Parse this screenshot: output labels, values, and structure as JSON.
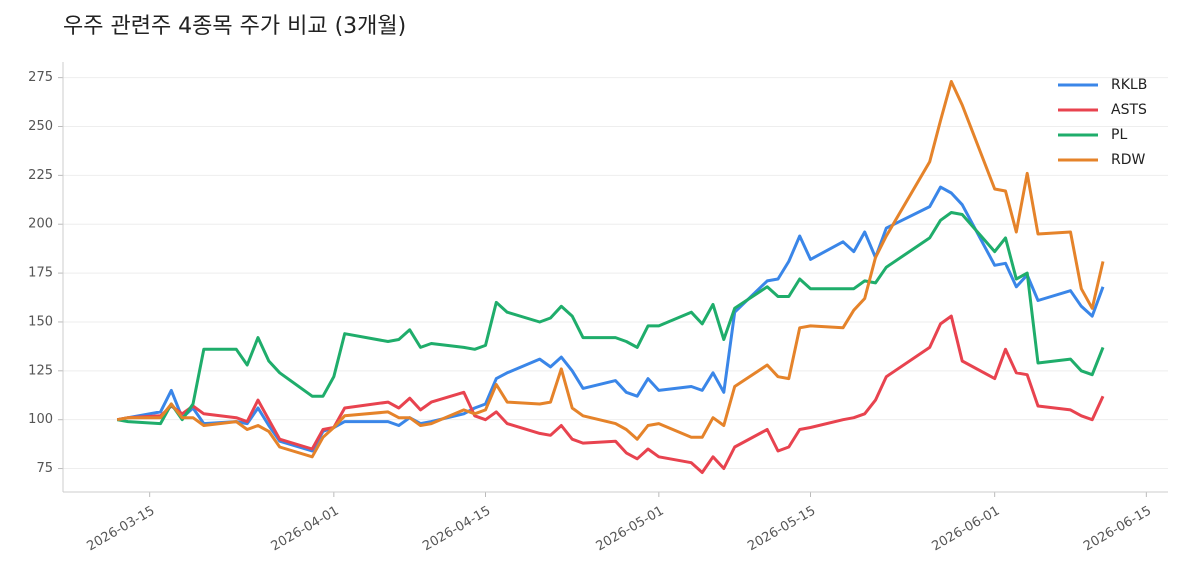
{
  "chart_data": {
    "type": "line",
    "title": "우주 관련주 4종목 주가 비교 (3개월)",
    "x": [
      "2026-03-12",
      "2026-03-13",
      "2026-03-16",
      "2026-03-17",
      "2026-03-18",
      "2026-03-19",
      "2026-03-20",
      "2026-03-23",
      "2026-03-24",
      "2026-03-25",
      "2026-03-26",
      "2026-03-27",
      "2026-03-30",
      "2026-03-31",
      "2026-04-01",
      "2026-04-02",
      "2026-04-06",
      "2026-04-07",
      "2026-04-08",
      "2026-04-09",
      "2026-04-10",
      "2026-04-13",
      "2026-04-14",
      "2026-04-15",
      "2026-04-16",
      "2026-04-17",
      "2026-04-20",
      "2026-04-21",
      "2026-04-22",
      "2026-04-23",
      "2026-04-24",
      "2026-04-27",
      "2026-04-28",
      "2026-04-29",
      "2026-04-30",
      "2026-05-01",
      "2026-05-04",
      "2026-05-05",
      "2026-05-06",
      "2026-05-07",
      "2026-05-08",
      "2026-05-11",
      "2026-05-12",
      "2026-05-13",
      "2026-05-14",
      "2026-05-15",
      "2026-05-18",
      "2026-05-19",
      "2026-05-20",
      "2026-05-21",
      "2026-05-22",
      "2026-05-26",
      "2026-05-27",
      "2026-05-28",
      "2026-05-29",
      "2026-06-01",
      "2026-06-02",
      "2026-06-03",
      "2026-06-04",
      "2026-06-05",
      "2026-06-08",
      "2026-06-09",
      "2026-06-10",
      "2026-06-11"
    ],
    "series": [
      {
        "name": "RKLB",
        "color": "#3a86e8",
        "values": [
          100,
          101,
          104,
          115,
          101,
          106,
          98,
          99,
          98,
          106,
          97,
          89,
          84,
          94,
          96,
          99,
          99,
          97,
          101,
          98,
          99,
          103,
          106,
          108,
          121,
          124,
          131,
          127,
          132,
          125,
          116,
          120,
          114,
          112,
          121,
          115,
          117,
          115,
          124,
          114,
          155,
          171,
          172,
          181,
          194,
          182,
          191,
          186,
          196,
          183,
          198,
          209,
          219,
          216,
          210,
          179,
          180,
          168,
          174,
          161,
          166,
          158,
          153,
          168
        ]
      },
      {
        "name": "ASTS",
        "color": "#e8434f",
        "values": [
          100,
          101,
          102,
          107,
          103,
          107,
          103,
          101,
          99,
          110,
          100,
          90,
          85,
          95,
          96,
          106,
          109,
          106,
          111,
          105,
          109,
          114,
          102,
          100,
          104,
          98,
          93,
          92,
          97,
          90,
          88,
          89,
          83,
          80,
          85,
          81,
          78,
          73,
          81,
          75,
          86,
          95,
          84,
          86,
          95,
          96,
          100,
          101,
          103,
          110,
          122,
          137,
          149,
          153,
          130,
          121,
          136,
          124,
          123,
          107,
          105,
          102,
          100,
          112
        ]
      },
      {
        "name": "PL",
        "color": "#1fad6b",
        "values": [
          100,
          99,
          98,
          108,
          100,
          108,
          136,
          136,
          128,
          142,
          130,
          124,
          112,
          112,
          122,
          144,
          140,
          141,
          146,
          137,
          139,
          137,
          136,
          138,
          160,
          155,
          150,
          152,
          158,
          153,
          142,
          142,
          140,
          137,
          148,
          148,
          155,
          149,
          159,
          141,
          157,
          168,
          163,
          163,
          172,
          167,
          167,
          167,
          171,
          170,
          178,
          193,
          202,
          206,
          205,
          186,
          193,
          172,
          175,
          129,
          131,
          125,
          123,
          137
        ]
      },
      {
        "name": "RDW",
        "color": "#e5832a",
        "values": [
          100,
          101,
          101,
          108,
          101,
          101,
          97,
          99,
          95,
          97,
          94,
          86,
          81,
          91,
          96,
          102,
          104,
          101,
          101,
          97,
          98,
          105,
          103,
          105,
          118,
          109,
          108,
          109,
          126,
          106,
          102,
          98,
          95,
          90,
          97,
          98,
          91,
          91,
          101,
          97,
          117,
          128,
          122,
          121,
          147,
          148,
          147,
          156,
          162,
          183,
          194,
          232,
          253,
          273,
          261,
          218,
          217,
          196,
          226,
          195,
          196,
          167,
          157,
          181
        ]
      }
    ],
    "xlim": [
      "2026-03-07",
      "2026-06-17"
    ],
    "xticks": [
      "2026-03-15",
      "2026-04-01",
      "2026-04-15",
      "2026-05-01",
      "2026-05-15",
      "2026-06-01",
      "2026-06-15"
    ],
    "ylim": [
      63,
      283
    ],
    "yticks": [
      75,
      100,
      125,
      150,
      175,
      200,
      225,
      250,
      275
    ],
    "grid": true,
    "legend": "upper-right"
  }
}
